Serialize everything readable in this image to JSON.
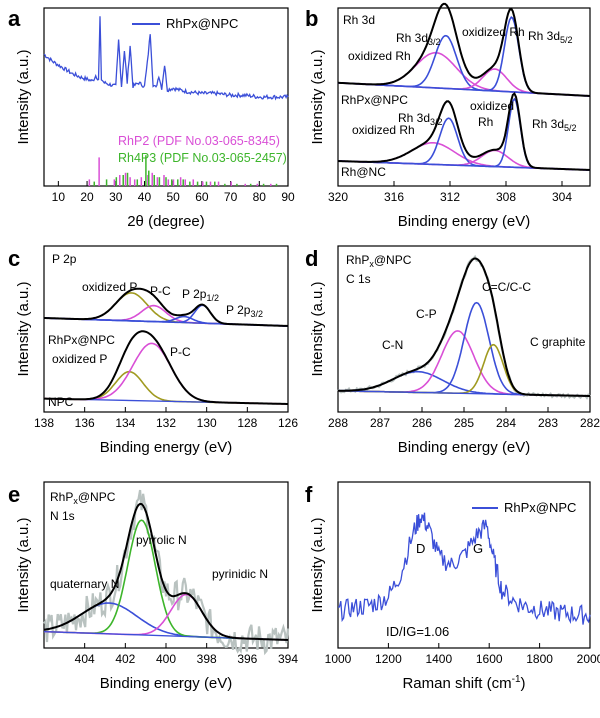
{
  "chart_data": [
    {
      "id": "a",
      "type": "line",
      "panel_label": "a",
      "xlabel": "2θ (degree)",
      "ylabel": "Intensity (a.u.)",
      "xlim": [
        5,
        90
      ],
      "ylim": [
        0,
        100
      ],
      "xticks": [
        10,
        20,
        30,
        40,
        50,
        60,
        70,
        80,
        90
      ],
      "legend": "RhPx@NPC",
      "series": [
        {
          "name": "RhPx@NPC",
          "color": "#3b4fd8",
          "x": [
            5,
            8,
            10,
            12,
            15,
            18,
            20,
            22,
            23,
            24,
            24.5,
            25,
            26,
            28,
            30,
            31,
            32,
            33,
            34,
            35,
            36,
            38,
            40,
            41,
            42,
            43,
            44,
            45,
            46,
            47,
            48,
            50,
            52,
            55,
            60,
            65,
            70,
            75,
            80,
            85,
            90
          ],
          "y": [
            74,
            70,
            68,
            66,
            63,
            61,
            60,
            59,
            62,
            60,
            95,
            60,
            58,
            57,
            56,
            82,
            56,
            76,
            58,
            79,
            56,
            58,
            56,
            69,
            86,
            57,
            55,
            62,
            55,
            68,
            54,
            55,
            54,
            53,
            52,
            52,
            51,
            51,
            50,
            50,
            50
          ]
        }
      ],
      "references": [
        {
          "name": "RhP2 (PDF No.03-065-8345)",
          "color": "#d94fd6",
          "positions": [
            20.8,
            24.2,
            29.5,
            31.4,
            33.4,
            35.0,
            36.6,
            38.9,
            41.2,
            42.7,
            44.5,
            46.8,
            48.3,
            50.1,
            52.6,
            54.2,
            57.0,
            60.3,
            63.0,
            65.8,
            70.2,
            75.1,
            79.3,
            84.0
          ],
          "heights": [
            3,
            13,
            3,
            5,
            6,
            4,
            3,
            4,
            5,
            6,
            4,
            5,
            3,
            3,
            4,
            3,
            3,
            2,
            2,
            2,
            2,
            1,
            1,
            1
          ]
        },
        {
          "name": "Rh4P3 (PDF No.03-065-2457)",
          "color": "#3db52b",
          "positions": [
            22.5,
            26.8,
            30.2,
            32.6,
            34.1,
            37.5,
            40.5,
            41.5,
            43.4,
            45.2,
            47.5,
            49.5,
            51.6,
            53.5,
            55.8,
            58.5,
            61.6,
            64.5,
            68.0,
            72.2,
            77.0,
            81.5,
            86.0
          ],
          "heights": [
            2,
            3,
            4,
            5,
            6,
            3,
            14,
            7,
            5,
            4,
            4,
            3,
            3,
            3,
            2,
            2,
            2,
            2,
            1,
            1,
            1,
            1,
            1
          ]
        }
      ]
    },
    {
      "id": "b",
      "type": "line",
      "panel_label": "b",
      "title": "Rh 3d",
      "xlabel": "Binding energy (eV)",
      "ylabel": "Intensity (a.u.)",
      "xlim": [
        320,
        302
      ],
      "xticks": [
        320,
        316,
        312,
        308,
        304
      ],
      "samples": [
        {
          "name": "RhPx@NPC",
          "peaks": [
            {
              "label": "oxidized Rh",
              "center": 313.0,
              "fwhm": 3.4,
              "amp": 16,
              "color": "#d94fd6"
            },
            {
              "label": "Rh 3d3/2",
              "center": 312.3,
              "fwhm": 1.8,
              "amp": 24,
              "color": "#3b4fd8"
            },
            {
              "label": "oxidized Rh",
              "center": 308.8,
              "fwhm": 2.0,
              "amp": 10,
              "color": "#d94fd6"
            },
            {
              "label": "Rh 3d5/2",
              "center": 307.6,
              "fwhm": 1.2,
              "amp": 34,
              "color": "#3b4fd8"
            }
          ]
        },
        {
          "name": "Rh@NC",
          "peaks": [
            {
              "label": "oxidized Rh",
              "center": 313.2,
              "fwhm": 3.6,
              "amp": 12,
              "color": "#d94fd6"
            },
            {
              "label": "Rh 3d3/2",
              "center": 312.1,
              "fwhm": 1.5,
              "amp": 26,
              "color": "#3b4fd8"
            },
            {
              "label": "oxidized Rh",
              "center": 308.8,
              "fwhm": 2.2,
              "amp": 9,
              "color": "#d94fd6"
            },
            {
              "label": "Rh 3d5/2",
              "center": 307.4,
              "fwhm": 1.0,
              "amp": 38,
              "color": "#3b4fd8"
            }
          ]
        }
      ]
    },
    {
      "id": "c",
      "type": "line",
      "panel_label": "c",
      "title": "P 2p",
      "xlabel": "Binding energy (eV)",
      "ylabel": "Intensity (a.u.)",
      "xlim": [
        138,
        126
      ],
      "xticks": [
        138,
        136,
        134,
        132,
        130,
        128,
        126
      ],
      "samples": [
        {
          "name": "RhPx@NPC",
          "peaks": [
            {
              "label": "oxidized P",
              "center": 133.7,
              "fwhm": 1.8,
              "amp": 14,
              "color": "#a09a20"
            },
            {
              "label": "P-C",
              "center": 132.6,
              "fwhm": 1.4,
              "amp": 8,
              "color": "#d94fd6"
            },
            {
              "label": "P 2p1/2",
              "center": 131.1,
              "fwhm": 1.0,
              "amp": 3,
              "color": "#3b4fd8"
            },
            {
              "label": "P 2p3/2",
              "center": 130.2,
              "fwhm": 0.9,
              "amp": 9,
              "color": "#3b4fd8"
            }
          ]
        },
        {
          "name": "NPC",
          "peaks": [
            {
              "label": "oxidized P",
              "center": 133.8,
              "fwhm": 1.6,
              "amp": 16,
              "color": "#a09a20"
            },
            {
              "label": "P-C",
              "center": 132.7,
              "fwhm": 2.2,
              "amp": 32,
              "color": "#d94fd6"
            }
          ]
        }
      ]
    },
    {
      "id": "d",
      "type": "line",
      "panel_label": "d",
      "title": "C 1s",
      "sample": "RhPx@NPC",
      "xlabel": "Binding energy (eV)",
      "ylabel": "Intensity (a.u.)",
      "xlim": [
        288,
        282
      ],
      "xticks": [
        288,
        287,
        286,
        285,
        284,
        283,
        282
      ],
      "peaks": [
        {
          "label": "C-N",
          "center": 286.1,
          "fwhm": 1.4,
          "amp": 16,
          "color": "#3b4fd8"
        },
        {
          "label": "C-P",
          "center": 285.15,
          "fwhm": 0.9,
          "amp": 48,
          "color": "#d94fd6"
        },
        {
          "label": "C=C/C-C",
          "center": 284.7,
          "fwhm": 0.7,
          "amp": 70,
          "color": "#3b4fd8"
        },
        {
          "label": "C graphite",
          "center": 284.3,
          "fwhm": 0.55,
          "amp": 38,
          "color": "#a09a20"
        }
      ]
    },
    {
      "id": "e",
      "type": "line",
      "panel_label": "e",
      "title": "N 1s",
      "sample": "RhPx@NPC",
      "xlabel": "Binding energy (eV)",
      "ylabel": "Intensity (a.u.)",
      "xlim": [
        406,
        394
      ],
      "xticks": [
        404,
        402,
        400,
        398,
        396,
        394
      ],
      "peaks": [
        {
          "label": "quaternary N",
          "center": 402.8,
          "fwhm": 3.2,
          "amp": 22,
          "color": "#3b4fd8"
        },
        {
          "label": "pyrrolic N",
          "center": 401.2,
          "fwhm": 1.6,
          "amp": 82,
          "color": "#3db52b"
        },
        {
          "label": "pyrinidic N",
          "center": 399.0,
          "fwhm": 1.8,
          "amp": 30,
          "color": "#d94fd6"
        }
      ]
    },
    {
      "id": "f",
      "type": "line",
      "panel_label": "f",
      "xlabel": "Raman shift (cm-1)",
      "ylabel": "Intensity (a.u.)",
      "xlim": [
        1000,
        2000
      ],
      "xticks": [
        1000,
        1200,
        1400,
        1600,
        1800,
        2000
      ],
      "legend": "RhPx@NPC",
      "annotations": [
        "D",
        "G",
        "ID/IG=1.06"
      ],
      "ratio_ID_IG": 1.06,
      "series": [
        {
          "name": "RhPx@NPC",
          "color": "#3b4fd8",
          "x": [
            1000,
            1050,
            1100,
            1150,
            1200,
            1250,
            1300,
            1330,
            1360,
            1400,
            1450,
            1500,
            1550,
            1590,
            1620,
            1650,
            1700,
            1750,
            1800,
            1850,
            1900,
            1950,
            2000
          ],
          "y": [
            22,
            24,
            25,
            27,
            31,
            45,
            70,
            80,
            72,
            55,
            50,
            56,
            68,
            74,
            52,
            35,
            28,
            25,
            23,
            22,
            21,
            20,
            20
          ]
        }
      ]
    }
  ]
}
